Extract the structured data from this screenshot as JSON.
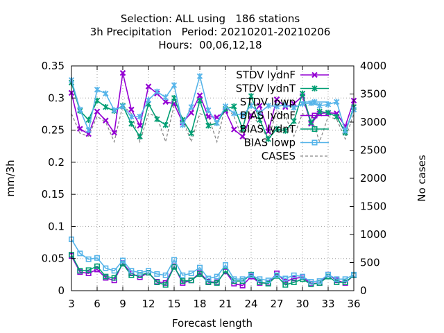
{
  "chart_data": {
    "type": "line",
    "title_lines": [
      "Selection: ALL using   186 stations",
      "3h Precipitation   Period: 20210201-20210206",
      "Hours:  00,06,12,18"
    ],
    "xlabel": "Forecast length",
    "ylabel": "mm/3h",
    "y2label": "No cases",
    "xlim": [
      3,
      36
    ],
    "ylim": [
      0,
      0.35
    ],
    "y2lim": [
      0,
      4000
    ],
    "xticks": [
      3,
      6,
      9,
      12,
      15,
      18,
      21,
      24,
      27,
      30,
      33,
      36
    ],
    "yticks": [
      0,
      0.05,
      0.1,
      0.15,
      0.2,
      0.25,
      0.3,
      0.35
    ],
    "yticklabels": [
      "0",
      "0.05",
      "0.1",
      "0.15",
      "0.2",
      "0.25",
      "0.3",
      "0.35"
    ],
    "y2ticks": [
      0,
      500,
      1000,
      1500,
      2000,
      2500,
      3000,
      3500,
      4000
    ],
    "grid": true,
    "legend_position": "top-right",
    "x": [
      3,
      4,
      5,
      6,
      7,
      8,
      9,
      10,
      11,
      12,
      13,
      14,
      15,
      16,
      17,
      18,
      19,
      20,
      21,
      22,
      23,
      24,
      25,
      26,
      27,
      28,
      29,
      30,
      31,
      32,
      33,
      34,
      35,
      36
    ],
    "series": [
      {
        "name": "STDV lydnF",
        "color": "#9400d3",
        "marker": "x",
        "axis": "y",
        "values": [
          0.308,
          0.252,
          0.244,
          0.279,
          0.265,
          0.246,
          0.339,
          0.282,
          0.257,
          0.318,
          0.307,
          0.294,
          0.291,
          0.262,
          0.277,
          0.304,
          0.271,
          0.27,
          0.28,
          0.251,
          0.24,
          0.273,
          0.288,
          0.248,
          0.298,
          0.286,
          0.291,
          0.303,
          0.26,
          0.276,
          0.277,
          0.276,
          0.256,
          0.296
        ]
      },
      {
        "name": "STDV lydnT",
        "color": "#009e73",
        "marker": "asterisk",
        "axis": "y",
        "values": [
          0.324,
          0.28,
          0.266,
          0.296,
          0.286,
          0.28,
          0.288,
          0.26,
          0.24,
          0.291,
          0.267,
          0.258,
          0.3,
          0.266,
          0.245,
          0.296,
          0.257,
          0.261,
          0.283,
          0.287,
          0.252,
          0.303,
          0.266,
          0.236,
          0.252,
          0.249,
          0.264,
          0.307,
          0.262,
          0.279,
          0.277,
          0.271,
          0.246,
          0.286
        ]
      },
      {
        "name": "STDV lowp",
        "color": "#56b4e9",
        "marker": "asterisk",
        "axis": "y",
        "values": [
          0.328,
          0.282,
          0.25,
          0.313,
          0.307,
          0.281,
          0.287,
          0.271,
          0.271,
          0.297,
          0.31,
          0.301,
          0.32,
          0.258,
          0.286,
          0.334,
          0.281,
          0.261,
          0.287,
          0.276,
          0.273,
          0.288,
          0.277,
          0.288,
          0.287,
          0.289,
          0.285,
          0.291,
          0.292,
          0.288,
          0.29,
          0.294,
          0.249,
          0.282
        ]
      },
      {
        "name": "BIAS lydnF",
        "color": "#9400d3",
        "marker": "box",
        "axis": "y",
        "values": [
          0.054,
          0.029,
          0.027,
          0.033,
          0.02,
          0.016,
          0.043,
          0.027,
          0.021,
          0.028,
          0.014,
          0.012,
          0.038,
          0.012,
          0.016,
          0.028,
          0.014,
          0.013,
          0.03,
          0.011,
          0.008,
          0.022,
          0.012,
          0.012,
          0.027,
          0.014,
          0.019,
          0.021,
          0.011,
          0.012,
          0.025,
          0.016,
          0.012,
          0.024
        ]
      },
      {
        "name": "BIAS lydnT",
        "color": "#009e73",
        "marker": "box",
        "axis": "y",
        "values": [
          0.056,
          0.031,
          0.032,
          0.038,
          0.022,
          0.02,
          0.042,
          0.024,
          0.024,
          0.028,
          0.013,
          0.009,
          0.037,
          0.015,
          0.016,
          0.026,
          0.013,
          0.012,
          0.031,
          0.015,
          0.015,
          0.025,
          0.013,
          0.011,
          0.023,
          0.009,
          0.013,
          0.018,
          0.01,
          0.012,
          0.022,
          0.013,
          0.013,
          0.024
        ]
      },
      {
        "name": "BIAS lowp",
        "color": "#56b4e9",
        "marker": "box",
        "axis": "y",
        "values": [
          0.08,
          0.058,
          0.049,
          0.051,
          0.035,
          0.031,
          0.047,
          0.031,
          0.028,
          0.031,
          0.026,
          0.024,
          0.048,
          0.024,
          0.027,
          0.036,
          0.019,
          0.022,
          0.04,
          0.018,
          0.018,
          0.024,
          0.018,
          0.016,
          0.024,
          0.019,
          0.024,
          0.022,
          0.014,
          0.015,
          0.025,
          0.018,
          0.018,
          0.025
        ]
      },
      {
        "name": "CASES",
        "color": "#888888",
        "marker": "none",
        "dash": "4,3",
        "axis": "y2",
        "values": [
          3150,
          2800,
          2750,
          3100,
          3000,
          2650,
          3300,
          3150,
          2650,
          3150,
          3100,
          2650,
          3300,
          3050,
          2650,
          3150,
          3100,
          2650,
          3300,
          3100,
          2700,
          3150,
          2950,
          2700,
          3200,
          3100,
          2750,
          3150,
          3100,
          2650,
          3100,
          3050,
          2700,
          3150
        ]
      }
    ]
  }
}
